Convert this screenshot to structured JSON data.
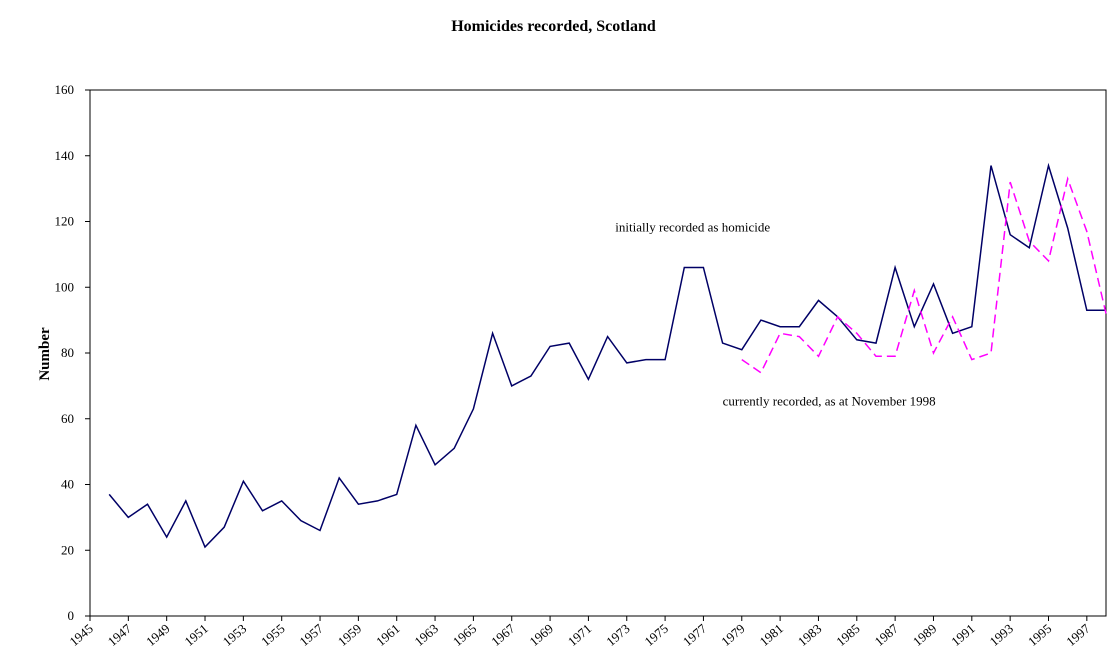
{
  "chart_data": {
    "type": "line",
    "title": "Homicides recorded, Scotland",
    "xlabel": "",
    "ylabel": "Number",
    "ylim": [
      0,
      160
    ],
    "yticks": [
      0,
      20,
      40,
      60,
      80,
      100,
      120,
      140,
      160
    ],
    "x_tick_labels": [
      "1945",
      "1947",
      "1949",
      "1951",
      "1953",
      "1955",
      "1957",
      "1959",
      "1961",
      "1963",
      "1965",
      "1967",
      "1969",
      "1971",
      "1973",
      "1975",
      "1977",
      "1979",
      "1981",
      "1983",
      "1985",
      "1987",
      "1989",
      "1991",
      "1993",
      "1995",
      "1997"
    ],
    "grid": false,
    "legend": "none",
    "series": [
      {
        "color": "#000066",
        "dash": "solid",
        "x": [
          1946,
          1947,
          1948,
          1949,
          1950,
          1951,
          1952,
          1953,
          1954,
          1955,
          1956,
          1957,
          1958,
          1959,
          1960,
          1961,
          1962,
          1963,
          1964,
          1965,
          1966,
          1967,
          1968,
          1969,
          1970,
          1971,
          1972,
          1973,
          1974,
          1975,
          1976,
          1977,
          1978,
          1979,
          1980,
          1981,
          1982,
          1983,
          1984,
          1985,
          1986,
          1987,
          1988,
          1989,
          1990,
          1991,
          1992,
          1993,
          1994,
          1995,
          1996,
          1997,
          1998
        ],
        "values": [
          37,
          30,
          34,
          24,
          35,
          21,
          27,
          41,
          32,
          35,
          29,
          26,
          42,
          34,
          35,
          37,
          58,
          46,
          51,
          63,
          86,
          70,
          73,
          82,
          83,
          72,
          85,
          77,
          78,
          78,
          106,
          106,
          83,
          81,
          90,
          88,
          88,
          96,
          91,
          84,
          83,
          106,
          88,
          101,
          86,
          88,
          137,
          116,
          112,
          137,
          118,
          93,
          93
        ]
      },
      {
        "color": "#ff00ff",
        "dash": "dashed",
        "x": [
          1979,
          1980,
          1981,
          1982,
          1983,
          1984,
          1985,
          1986,
          1987,
          1988,
          1989,
          1990,
          1991,
          1992,
          1993,
          1994,
          1995,
          1996,
          1997,
          1998
        ],
        "values": [
          78,
          74,
          86,
          85,
          79,
          91,
          86,
          79,
          79,
          99,
          80,
          91,
          78,
          80,
          132,
          114,
          108,
          133,
          117,
          92
        ]
      }
    ],
    "annotations": [
      {
        "text": "initially recorded as homicide",
        "x": 1972.4,
        "y": 117
      },
      {
        "text": "currently recorded, as at November 1998",
        "x": 1978.0,
        "y": 64
      }
    ]
  }
}
